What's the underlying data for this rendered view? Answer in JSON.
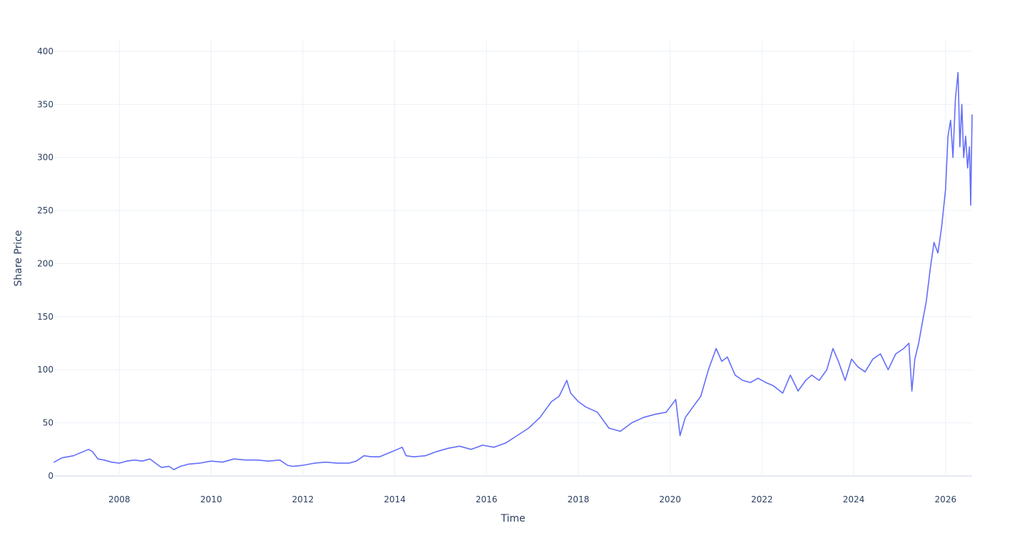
{
  "chart_data": {
    "type": "line",
    "title": "",
    "xlabel": "Time",
    "ylabel": "Share Price",
    "x_ticks": [
      "2008",
      "2010",
      "2012",
      "2014",
      "2016",
      "2018",
      "2020",
      "2022",
      "2024",
      "2026"
    ],
    "y_ticks": [
      0,
      50,
      100,
      150,
      200,
      250,
      300,
      350,
      400
    ],
    "xlim": [
      "2006-08-01",
      "2026-07-31"
    ],
    "ylim": [
      0,
      410
    ],
    "grid": true,
    "legend": false,
    "series_color": "#636efa",
    "series": [
      {
        "x": [
          "2006-08-01",
          "2006-10-01",
          "2007-01-01",
          "2007-03-01",
          "2007-05-01",
          "2007-06-01",
          "2007-07-15",
          "2007-09-01",
          "2007-11-01",
          "2008-01-01",
          "2008-03-01",
          "2008-05-01",
          "2008-07-01",
          "2008-09-01",
          "2008-10-15",
          "2008-12-01",
          "2009-02-01",
          "2009-03-10",
          "2009-05-01",
          "2009-07-01",
          "2009-10-01",
          "2010-01-01",
          "2010-04-01",
          "2010-07-01",
          "2010-10-01",
          "2011-01-01",
          "2011-04-01",
          "2011-07-01",
          "2011-09-01",
          "2011-10-15",
          "2012-01-01",
          "2012-04-01",
          "2012-07-01",
          "2012-10-01",
          "2013-01-01",
          "2013-03-01",
          "2013-05-01",
          "2013-07-01",
          "2013-09-01",
          "2013-11-01",
          "2014-01-01",
          "2014-03-01",
          "2014-04-01",
          "2014-06-01",
          "2014-09-01",
          "2014-12-01",
          "2015-03-01",
          "2015-06-01",
          "2015-09-01",
          "2015-12-01",
          "2016-03-01",
          "2016-06-01",
          "2016-09-01",
          "2016-12-01",
          "2017-03-01",
          "2017-06-01",
          "2017-08-01",
          "2017-10-01",
          "2017-11-01",
          "2018-01-01",
          "2018-03-01",
          "2018-06-01",
          "2018-09-01",
          "2018-12-01",
          "2019-03-01",
          "2019-06-01",
          "2019-09-01",
          "2019-12-01",
          "2020-02-15",
          "2020-03-20",
          "2020-05-01",
          "2020-07-01",
          "2020-09-01",
          "2020-11-01",
          "2021-01-01",
          "2021-02-15",
          "2021-04-01",
          "2021-06-01",
          "2021-08-01",
          "2021-10-01",
          "2021-12-01",
          "2022-02-01",
          "2022-04-01",
          "2022-06-15",
          "2022-08-15",
          "2022-10-15",
          "2022-12-15",
          "2023-02-01",
          "2023-04-01",
          "2023-06-01",
          "2023-07-20",
          "2023-09-01",
          "2023-10-25",
          "2023-12-15",
          "2024-02-01",
          "2024-04-01",
          "2024-06-01",
          "2024-08-01",
          "2024-10-01",
          "2024-12-01",
          "2025-02-01",
          "2025-03-15",
          "2025-04-08",
          "2025-05-01",
          "2025-06-01",
          "2025-07-01",
          "2025-08-01",
          "2025-09-01",
          "2025-10-01",
          "2025-11-01",
          "2025-12-01",
          "2026-01-01",
          "2026-01-20",
          "2026-02-10",
          "2026-03-01",
          "2026-03-20",
          "2026-04-10",
          "2026-04-25",
          "2026-05-10",
          "2026-05-25",
          "2026-06-10",
          "2026-06-25",
          "2026-07-10",
          "2026-07-20",
          "2026-07-31"
        ],
        "y": [
          13,
          17,
          19,
          22,
          25,
          23,
          16,
          15,
          13,
          12,
          14,
          15,
          14,
          16,
          12,
          8,
          9,
          6,
          9,
          11,
          12,
          14,
          13,
          16,
          15,
          15,
          14,
          15,
          10,
          9,
          10,
          12,
          13,
          12,
          12,
          14,
          19,
          18,
          18,
          21,
          24,
          27,
          19,
          18,
          19,
          23,
          26,
          28,
          25,
          29,
          27,
          31,
          38,
          45,
          55,
          70,
          75,
          90,
          78,
          70,
          65,
          60,
          45,
          42,
          50,
          55,
          58,
          60,
          72,
          38,
          55,
          65,
          75,
          100,
          120,
          108,
          112,
          95,
          90,
          88,
          92,
          88,
          85,
          78,
          95,
          80,
          90,
          95,
          90,
          100,
          120,
          108,
          90,
          110,
          103,
          98,
          110,
          115,
          100,
          115,
          120,
          125,
          80,
          110,
          125,
          145,
          165,
          195,
          220,
          210,
          235,
          270,
          320,
          335,
          300,
          355,
          380,
          310,
          350,
          300,
          320,
          290,
          310,
          255,
          340
        ]
      }
    ]
  }
}
